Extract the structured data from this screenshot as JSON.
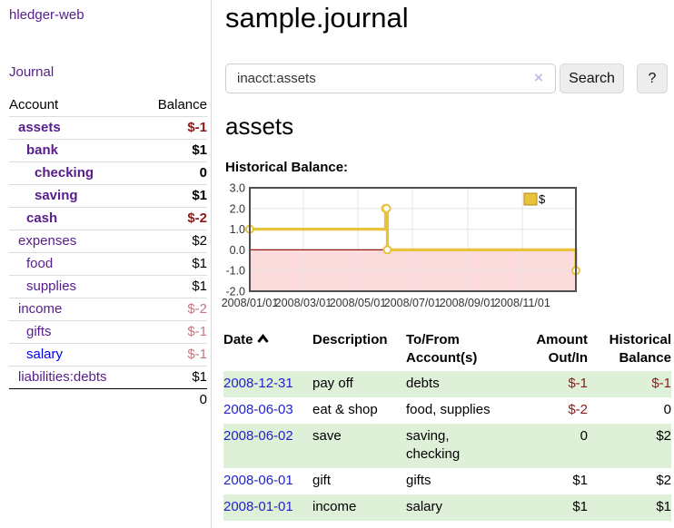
{
  "app": {
    "brand": "hledger-web",
    "nav_journal": "Journal"
  },
  "sidebar": {
    "columns": {
      "account": "Account",
      "balance": "Balance"
    },
    "accounts": [
      {
        "name": "assets",
        "depth": 1,
        "bold": true,
        "balance": "$-1",
        "balance_style": "neg-strong",
        "link_blue": false
      },
      {
        "name": "bank",
        "depth": 2,
        "bold": true,
        "balance": "$1",
        "balance_style": "",
        "link_blue": false
      },
      {
        "name": "checking",
        "depth": 3,
        "bold": true,
        "balance": "0",
        "balance_style": "",
        "link_blue": false
      },
      {
        "name": "saving",
        "depth": 3,
        "bold": true,
        "balance": "$1",
        "balance_style": "",
        "link_blue": false
      },
      {
        "name": "cash",
        "depth": 2,
        "bold": true,
        "balance": "$-2",
        "balance_style": "neg-strong",
        "link_blue": false
      },
      {
        "name": "expenses",
        "depth": 1,
        "bold": false,
        "balance": "$2",
        "balance_style": "",
        "link_blue": false
      },
      {
        "name": "food",
        "depth": 2,
        "bold": false,
        "balance": "$1",
        "balance_style": "",
        "link_blue": false
      },
      {
        "name": "supplies",
        "depth": 2,
        "bold": false,
        "balance": "$1",
        "balance_style": "",
        "link_blue": false
      },
      {
        "name": "income",
        "depth": 1,
        "bold": false,
        "balance": "$-2",
        "balance_style": "neg-soft",
        "link_blue": false
      },
      {
        "name": "gifts",
        "depth": 2,
        "bold": false,
        "balance": "$-1",
        "balance_style": "neg-soft",
        "link_blue": false
      },
      {
        "name": "salary",
        "depth": 2,
        "bold": false,
        "balance": "$-1",
        "balance_style": "neg-soft",
        "link_blue": true
      },
      {
        "name": "liabilities:debts",
        "depth": 1,
        "bold": false,
        "balance": "$1",
        "balance_style": "",
        "link_blue": false
      }
    ],
    "total": "0"
  },
  "header": {
    "title": "sample.journal"
  },
  "search": {
    "value": "inacct:assets",
    "clear_icon": "×",
    "button": "Search",
    "help_button": "?"
  },
  "account_page": {
    "title": "assets",
    "chart_label": "Historical Balance:"
  },
  "chart_data": {
    "type": "line",
    "title": "Historical Balance",
    "step": true,
    "legend": "$",
    "legend_position": "top-right",
    "grid": true,
    "line_color": "#e8c23c",
    "marker_fill": "#ffffff",
    "negative_region_color": "#fbdbdb",
    "zero_line_color": "#991111",
    "ylim": [
      -2,
      3
    ],
    "yticks": [
      {
        "label": "3.0",
        "value": 3
      },
      {
        "label": "2.0",
        "value": 2
      },
      {
        "label": "1.0",
        "value": 1
      },
      {
        "label": "0.0",
        "value": 0
      },
      {
        "label": "-1.0",
        "value": -1
      },
      {
        "label": "-2.0",
        "value": -2
      }
    ],
    "x_domain": [
      "2008-01-01",
      "2008-12-31"
    ],
    "xticks": [
      {
        "label": "2008/01/01",
        "date": "2008-01-01"
      },
      {
        "label": "2008/03/01",
        "date": "2008-03-01"
      },
      {
        "label": "2008/05/01",
        "date": "2008-05-01"
      },
      {
        "label": "2008/07/01",
        "date": "2008-07-01"
      },
      {
        "label": "2008/09/01",
        "date": "2008-09-01"
      },
      {
        "label": "2008/11/01",
        "date": "2008-11-01"
      }
    ],
    "series": [
      {
        "name": "$",
        "points": [
          [
            "2008-01-01",
            1
          ],
          [
            "2008-06-01",
            2
          ],
          [
            "2008-06-02",
            2
          ],
          [
            "2008-06-03",
            0
          ],
          [
            "2008-12-31",
            -1
          ]
        ]
      }
    ]
  },
  "register": {
    "columns": {
      "date": "Date",
      "description": "Description",
      "accounts": "To/From Account(s)",
      "amount": "Amount Out/In",
      "balance": "Historical Balance"
    },
    "rows": [
      {
        "date": "2008-12-31",
        "description": "pay off",
        "accounts": "debts",
        "amount": "$-1",
        "amount_neg": true,
        "balance": "$-1",
        "balance_neg": true
      },
      {
        "date": "2008-06-03",
        "description": "eat & shop",
        "accounts": "food, supplies",
        "amount": "$-2",
        "amount_neg": true,
        "balance": "0",
        "balance_neg": false
      },
      {
        "date": "2008-06-02",
        "description": "save",
        "accounts": "saving, checking",
        "amount": "0",
        "amount_neg": false,
        "balance": "$2",
        "balance_neg": false
      },
      {
        "date": "2008-06-01",
        "description": "gift",
        "accounts": "gifts",
        "amount": "$1",
        "amount_neg": false,
        "balance": "$2",
        "balance_neg": false
      },
      {
        "date": "2008-01-01",
        "description": "income",
        "accounts": "salary",
        "amount": "$1",
        "amount_neg": false,
        "balance": "$1",
        "balance_neg": false
      }
    ]
  }
}
